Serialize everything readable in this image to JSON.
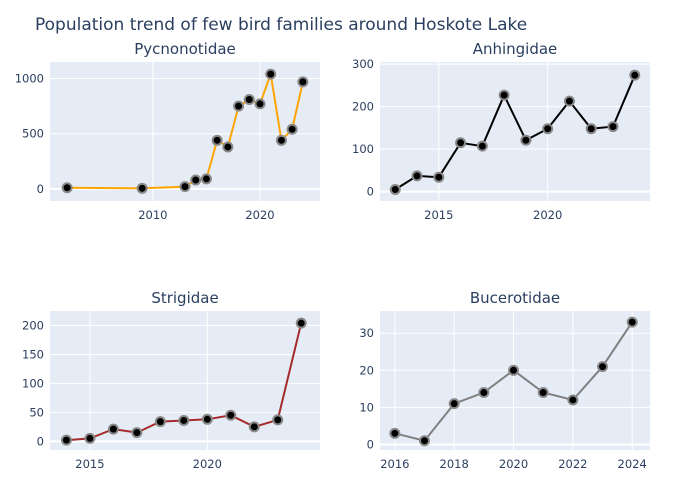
{
  "title": "Population trend of few bird families around Hoskote Lake",
  "chart_data": [
    {
      "type": "line",
      "title": "Pycnonotidae",
      "color": "#FFA500",
      "x": [
        2002,
        2009,
        2013,
        2014,
        2015,
        2016,
        2017,
        2018,
        2019,
        2020,
        2021,
        2022,
        2023,
        2024
      ],
      "y": [
        10,
        5,
        20,
        80,
        90,
        440,
        380,
        750,
        810,
        770,
        1040,
        440,
        540,
        970
      ],
      "xlim": [
        2000.4,
        2025.6
      ],
      "ylim": [
        -110,
        1150
      ],
      "xticks": [
        2010,
        2020
      ],
      "yticks": [
        0,
        500,
        1000
      ]
    },
    {
      "type": "line",
      "title": "Anhingidae",
      "color": "#000000",
      "x": [
        2013,
        2014,
        2015,
        2016,
        2017,
        2018,
        2019,
        2020,
        2021,
        2022,
        2023,
        2024
      ],
      "y": [
        5,
        37,
        34,
        115,
        107,
        227,
        121,
        148,
        213,
        148,
        153,
        274
      ],
      "xlim": [
        2012.3,
        2024.7
      ],
      "ylim": [
        -22,
        305
      ],
      "xticks": [
        2015,
        2020
      ],
      "yticks": [
        0,
        100,
        200,
        300
      ]
    },
    {
      "type": "line",
      "title": "Strigidae",
      "color": "#A52A2A",
      "x": [
        2014,
        2015,
        2016,
        2017,
        2018,
        2019,
        2020,
        2021,
        2022,
        2023,
        2024
      ],
      "y": [
        2,
        5,
        21,
        15,
        34,
        36,
        38,
        45,
        25,
        37,
        204
      ],
      "xlim": [
        2013.3,
        2024.8
      ],
      "ylim": [
        -15,
        225
      ],
      "xticks": [
        2015,
        2020
      ],
      "yticks": [
        0,
        50,
        100,
        150,
        200
      ]
    },
    {
      "type": "line",
      "title": "Bucerotidae",
      "color": "#808080",
      "x": [
        2016,
        2017,
        2018,
        2019,
        2020,
        2021,
        2022,
        2023,
        2024
      ],
      "y": [
        3,
        1,
        11,
        14,
        20,
        14,
        12,
        21,
        33
      ],
      "xlim": [
        2015.5,
        2024.6
      ],
      "ylim": [
        -1.5,
        36
      ],
      "xticks": [
        2016,
        2018,
        2020,
        2022,
        2024
      ],
      "yticks": [
        0,
        10,
        20,
        30
      ]
    }
  ]
}
